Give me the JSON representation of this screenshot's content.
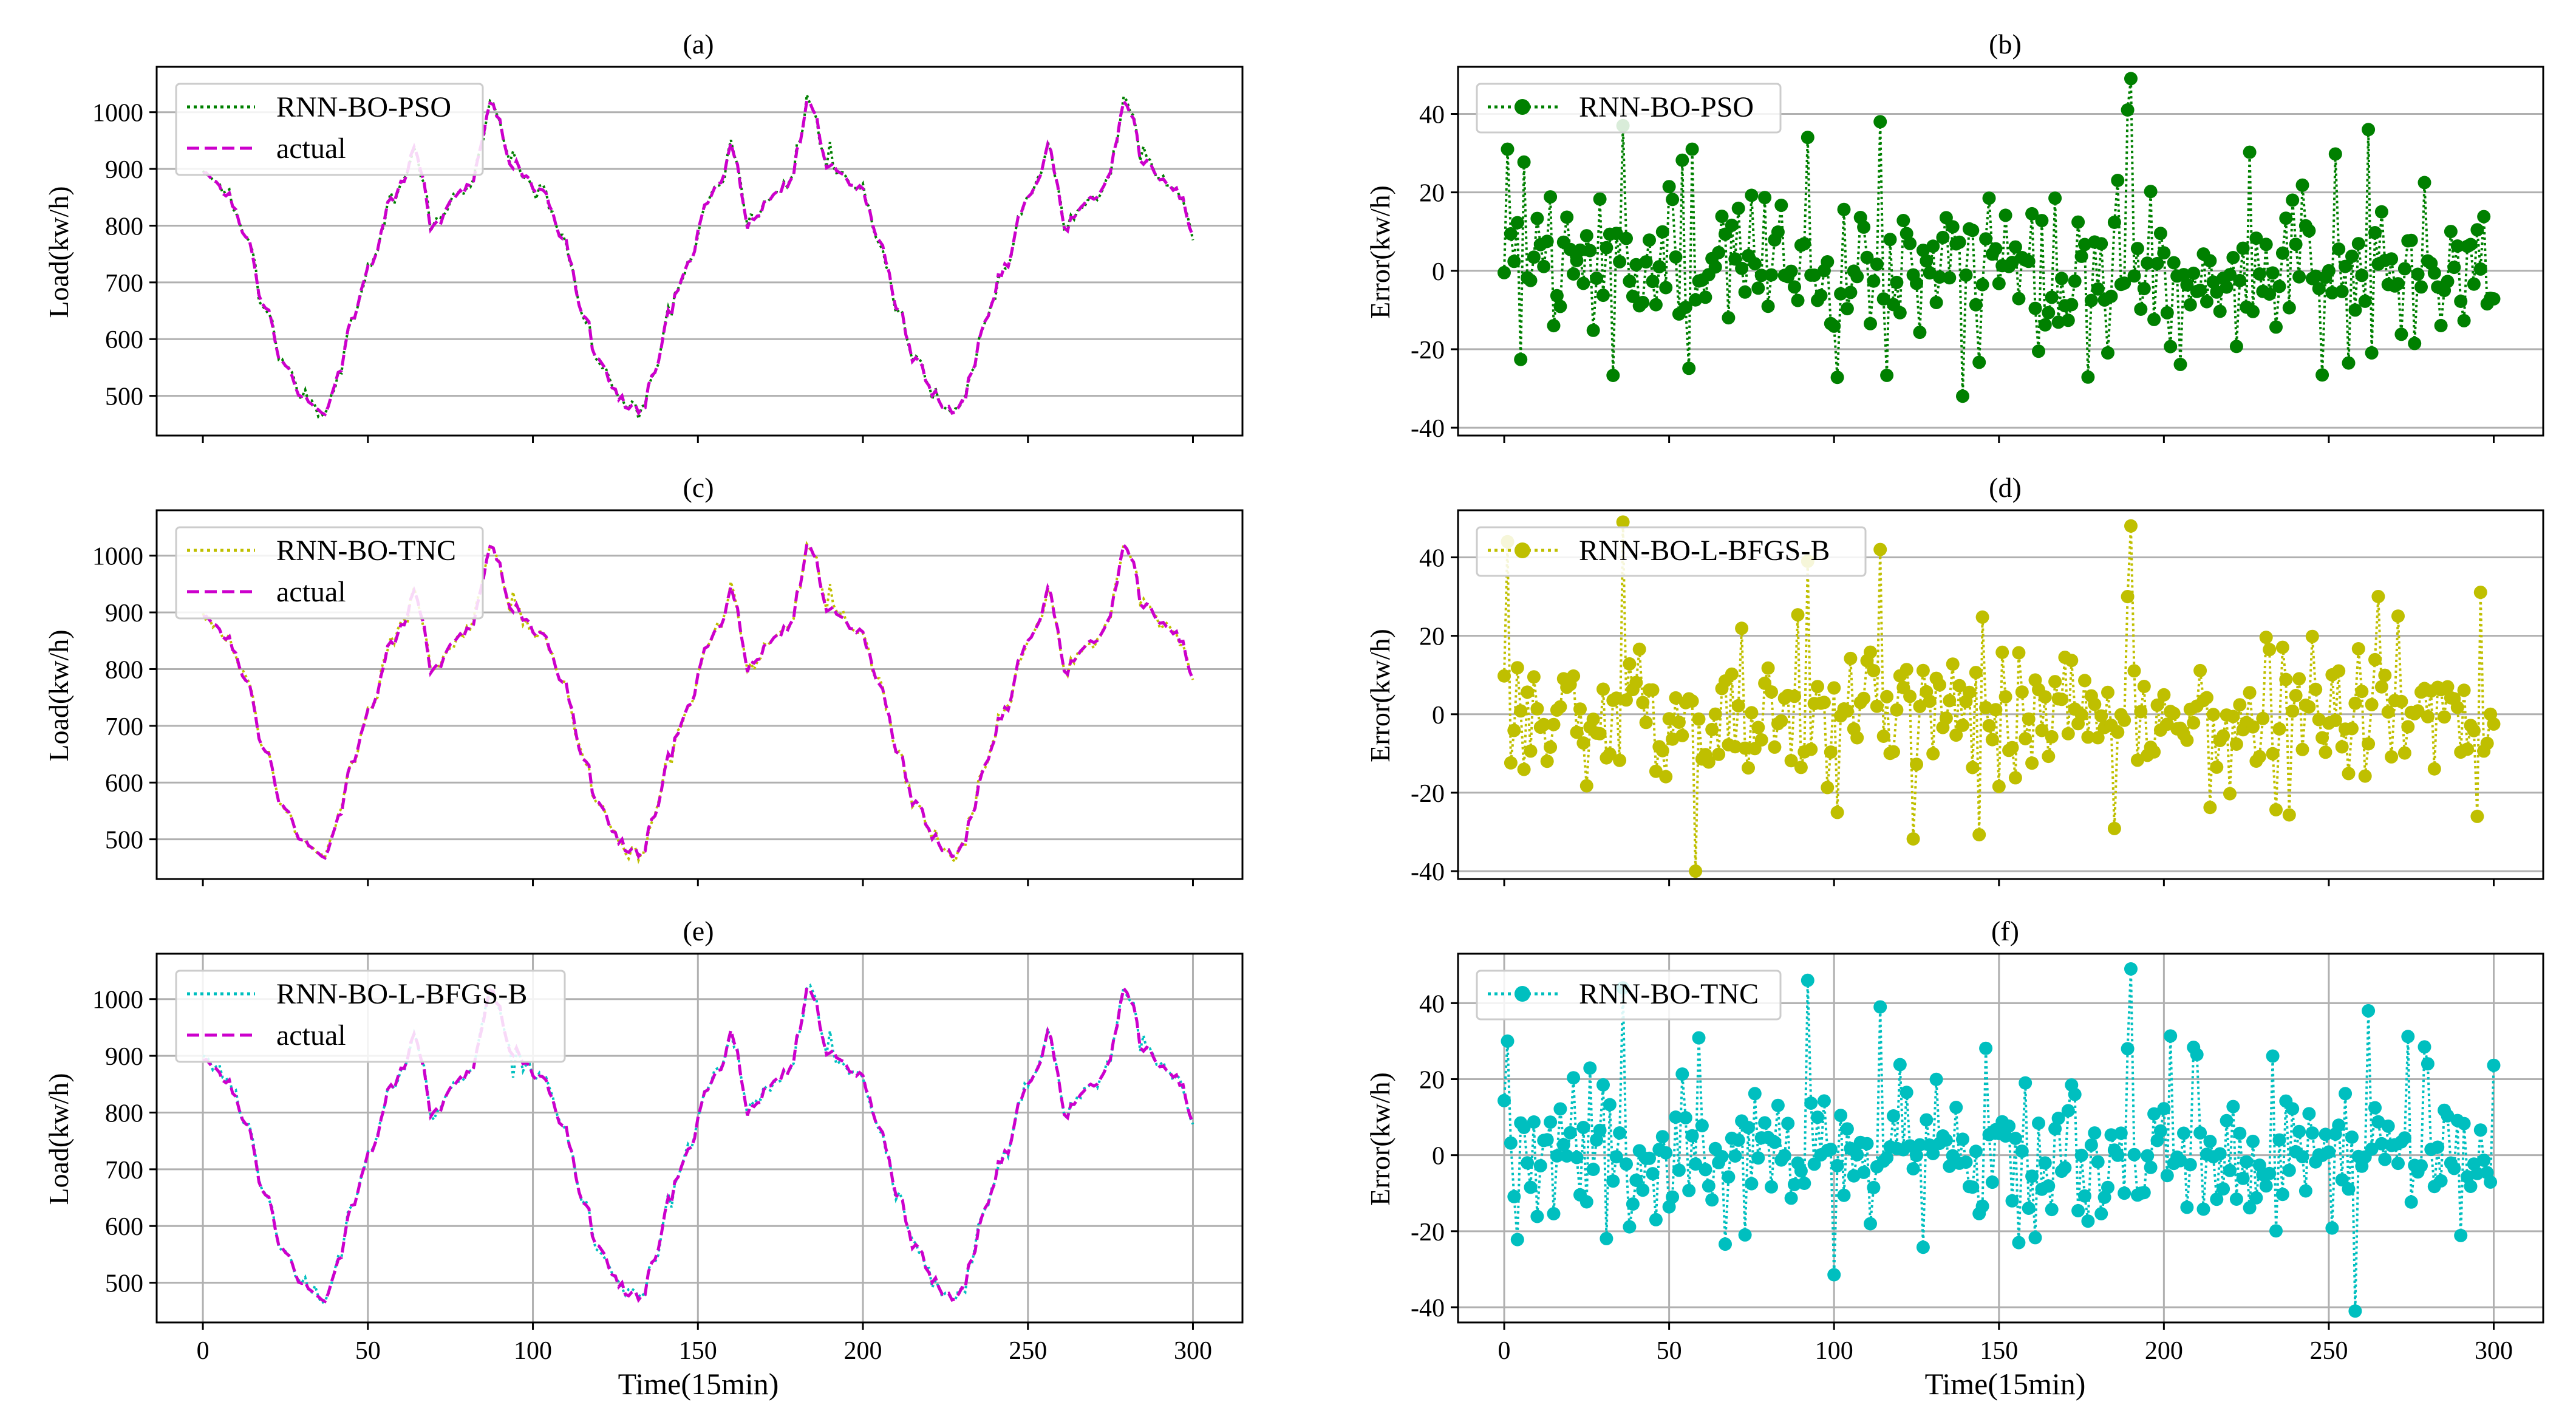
{
  "figure": {
    "xlabel": "Time(15min)",
    "ylabel_load": "Load(kw/h)",
    "ylabel_error": "Error(kw/h)",
    "xticks": [
      0,
      50,
      100,
      150,
      200,
      250,
      300
    ]
  },
  "chart_data": [
    {
      "type": "line",
      "panel": "a",
      "title": "(a)",
      "xlabel": "",
      "ylabel": "Load(kw/h)",
      "xlim": [
        -14,
        315
      ],
      "ylim": [
        430,
        1080
      ],
      "yticks": [
        500,
        600,
        700,
        800,
        900,
        1000
      ],
      "grid": "horizontal",
      "legend": "top-left",
      "series": [
        {
          "name": "RNN-BO-PSO",
          "color": "#008000",
          "style": "dotted",
          "role": "predicted"
        },
        {
          "name": "actual",
          "color": "#cc00cc",
          "style": "dashed",
          "role": "actual"
        }
      ]
    },
    {
      "type": "scatter",
      "panel": "b",
      "title": "(b)",
      "xlabel": "",
      "ylabel": "Error(kw/h)",
      "xlim": [
        -14,
        315
      ],
      "ylim": [
        -42,
        52
      ],
      "yticks": [
        -40,
        -20,
        0,
        20,
        40
      ],
      "grid": "horizontal",
      "legend": "top-left",
      "series": [
        {
          "name": "RNN-BO-PSO",
          "color": "#008000",
          "style": "dotted-marker"
        }
      ],
      "x": [
        1,
        36,
        57,
        92,
        114,
        189,
        190,
        262
      ],
      "values": [
        31,
        37,
        31,
        34,
        38,
        41,
        49,
        36
      ]
    },
    {
      "type": "line",
      "panel": "c",
      "title": "(c)",
      "xlabel": "",
      "ylabel": "Load(kw/h)",
      "xlim": [
        -14,
        315
      ],
      "ylim": [
        430,
        1080
      ],
      "yticks": [
        500,
        600,
        700,
        800,
        900,
        1000
      ],
      "grid": "horizontal",
      "legend": "top-left",
      "series": [
        {
          "name": "RNN-BO-TNC",
          "color": "#bfbf00",
          "style": "dotted",
          "role": "predicted"
        },
        {
          "name": "actual",
          "color": "#cc00cc",
          "style": "dashed",
          "role": "actual"
        }
      ]
    },
    {
      "type": "scatter",
      "panel": "d",
      "title": "(d)",
      "xlabel": "",
      "ylabel": "Error(kw/h)",
      "xlim": [
        -14,
        315
      ],
      "ylim": [
        -42,
        52
      ],
      "yticks": [
        -40,
        -20,
        0,
        20,
        40
      ],
      "grid": "horizontal",
      "legend": "top-left",
      "series": [
        {
          "name": "RNN-BO-L-BFGS-B",
          "color": "#bfbf00",
          "style": "dotted-marker"
        }
      ],
      "x": [
        1,
        36,
        58,
        92,
        114,
        189,
        190
      ],
      "values": [
        44,
        49,
        -40,
        39,
        42,
        30,
        48
      ]
    },
    {
      "type": "line",
      "panel": "e",
      "title": "(e)",
      "xlabel": "Time(15min)",
      "ylabel": "Load(kw/h)",
      "xlim": [
        -14,
        315
      ],
      "ylim": [
        430,
        1080
      ],
      "yticks": [
        500,
        600,
        700,
        800,
        900,
        1000
      ],
      "grid": "both",
      "legend": "top-left",
      "series": [
        {
          "name": "RNN-BO-L-BFGS-B",
          "color": "#00bfbf",
          "style": "dotted",
          "role": "predicted"
        },
        {
          "name": "actual",
          "color": "#cc00cc",
          "style": "dashed",
          "role": "actual"
        }
      ]
    },
    {
      "type": "scatter",
      "panel": "f",
      "title": "(f)",
      "xlabel": "Time(15min)",
      "ylabel": "Error(kw/h)",
      "xlim": [
        -14,
        315
      ],
      "ylim": [
        -44,
        53
      ],
      "yticks": [
        -40,
        -20,
        0,
        20,
        40
      ],
      "grid": "both",
      "legend": "top-left",
      "series": [
        {
          "name": "RNN-BO-TNC",
          "color": "#00bfbf",
          "style": "dotted-marker"
        }
      ],
      "x": [
        1,
        36,
        92,
        114,
        189,
        190,
        258,
        262
      ],
      "values": [
        30,
        44,
        46,
        39,
        28,
        49,
        -41,
        38
      ]
    }
  ]
}
